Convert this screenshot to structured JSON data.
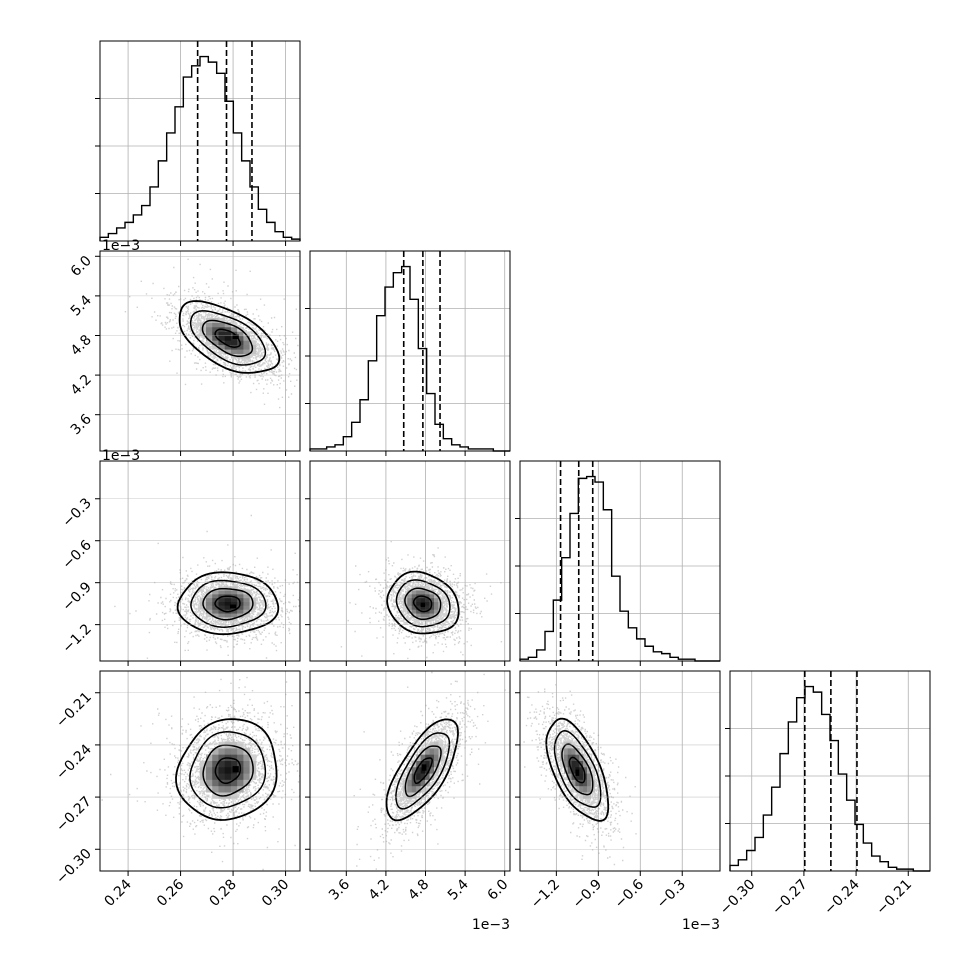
{
  "chart_data": {
    "type": "corner",
    "style": {
      "grid": true,
      "hist_color": "#000000",
      "grid_color": "#b0b0b0",
      "scatter_color": "#9a9a9a",
      "contour_color": "#000000"
    },
    "params": [
      {
        "range": [
          0.2293,
          0.3055
        ],
        "ticks": [
          0.24,
          0.26,
          0.28,
          0.3
        ],
        "tick_labels": [
          "0.24",
          "0.26",
          "0.28",
          "0.30"
        ],
        "offset": "",
        "quantiles": [
          0.2665,
          0.2775,
          0.2872
        ],
        "mean": 0.278,
        "std": 0.0095,
        "hist": [
          0.02,
          0.04,
          0.07,
          0.1,
          0.14,
          0.19,
          0.29,
          0.43,
          0.58,
          0.72,
          0.88,
          0.94,
          0.99,
          0.96,
          0.9,
          0.75,
          0.58,
          0.43,
          0.29,
          0.17,
          0.1,
          0.05,
          0.02,
          0.01
        ]
      },
      {
        "range": [
          3.05,
          6.08
        ],
        "ticks": [
          3.6,
          4.2,
          4.8,
          5.4,
          6.0
        ],
        "tick_labels": [
          "3.6",
          "4.2",
          "4.8",
          "5.4",
          "6.0"
        ],
        "offset": "1e−3",
        "quantiles": [
          4.47,
          4.76,
          5.02
        ],
        "mean": 4.76,
        "std": 0.27,
        "hist": [
          0.01,
          0.01,
          0.02,
          0.03,
          0.07,
          0.14,
          0.25,
          0.44,
          0.66,
          0.8,
          0.87,
          0.9,
          0.74,
          0.5,
          0.28,
          0.13,
          0.06,
          0.03,
          0.02,
          0.01,
          0.01,
          0.01,
          0.0,
          0.0
        ]
      },
      {
        "range": [
          -1.46,
          -0.03
        ],
        "ticks": [
          -1.2,
          -0.9,
          -0.6,
          -0.3
        ],
        "tick_labels": [
          "−1.2",
          "−0.9",
          "−0.6",
          "−0.3"
        ],
        "offset": "1e−3",
        "quantiles": [
          -1.17,
          -1.04,
          -0.94
        ],
        "mean": -1.05,
        "std": 0.11,
        "hist": [
          0.01,
          0.02,
          0.06,
          0.16,
          0.33,
          0.56,
          0.8,
          0.99,
          1.0,
          0.97,
          0.82,
          0.46,
          0.27,
          0.18,
          0.12,
          0.08,
          0.05,
          0.04,
          0.02,
          0.01,
          0.01,
          0.0,
          0.0,
          0.0
        ]
      },
      {
        "range": [
          -0.3125,
          -0.1975
        ],
        "ticks": [
          -0.3,
          -0.27,
          -0.24,
          -0.21
        ],
        "tick_labels": [
          "−0.30",
          "−0.27",
          "−0.24",
          "−0.21"
        ],
        "offset": "",
        "quantiles": [
          -0.2695,
          -0.2545,
          -0.2395
        ],
        "mean": -0.2545,
        "std": 0.0145,
        "hist": [
          0.03,
          0.06,
          0.11,
          0.18,
          0.3,
          0.45,
          0.63,
          0.8,
          0.93,
          0.99,
          0.96,
          0.84,
          0.7,
          0.52,
          0.38,
          0.25,
          0.15,
          0.08,
          0.05,
          0.02,
          0.01,
          0.01,
          0.0,
          0.0
        ]
      }
    ],
    "pairs": [
      {
        "row": 1,
        "col": 0,
        "corr": -0.55,
        "peak": [
          0.281,
          4.78
        ]
      },
      {
        "row": 2,
        "col": 0,
        "corr": 0.0,
        "peak": [
          0.28,
          -1.07
        ]
      },
      {
        "row": 2,
        "col": 1,
        "corr": -0.15,
        "peak": [
          4.76,
          -1.06
        ]
      },
      {
        "row": 3,
        "col": 0,
        "corr": 0.1,
        "peak": [
          0.281,
          -0.254
        ]
      },
      {
        "row": 3,
        "col": 1,
        "corr": 0.7,
        "peak": [
          4.78,
          -0.253
        ]
      },
      {
        "row": 3,
        "col": 2,
        "corr": -0.6,
        "peak": [
          -1.05,
          -0.256
        ]
      }
    ]
  }
}
